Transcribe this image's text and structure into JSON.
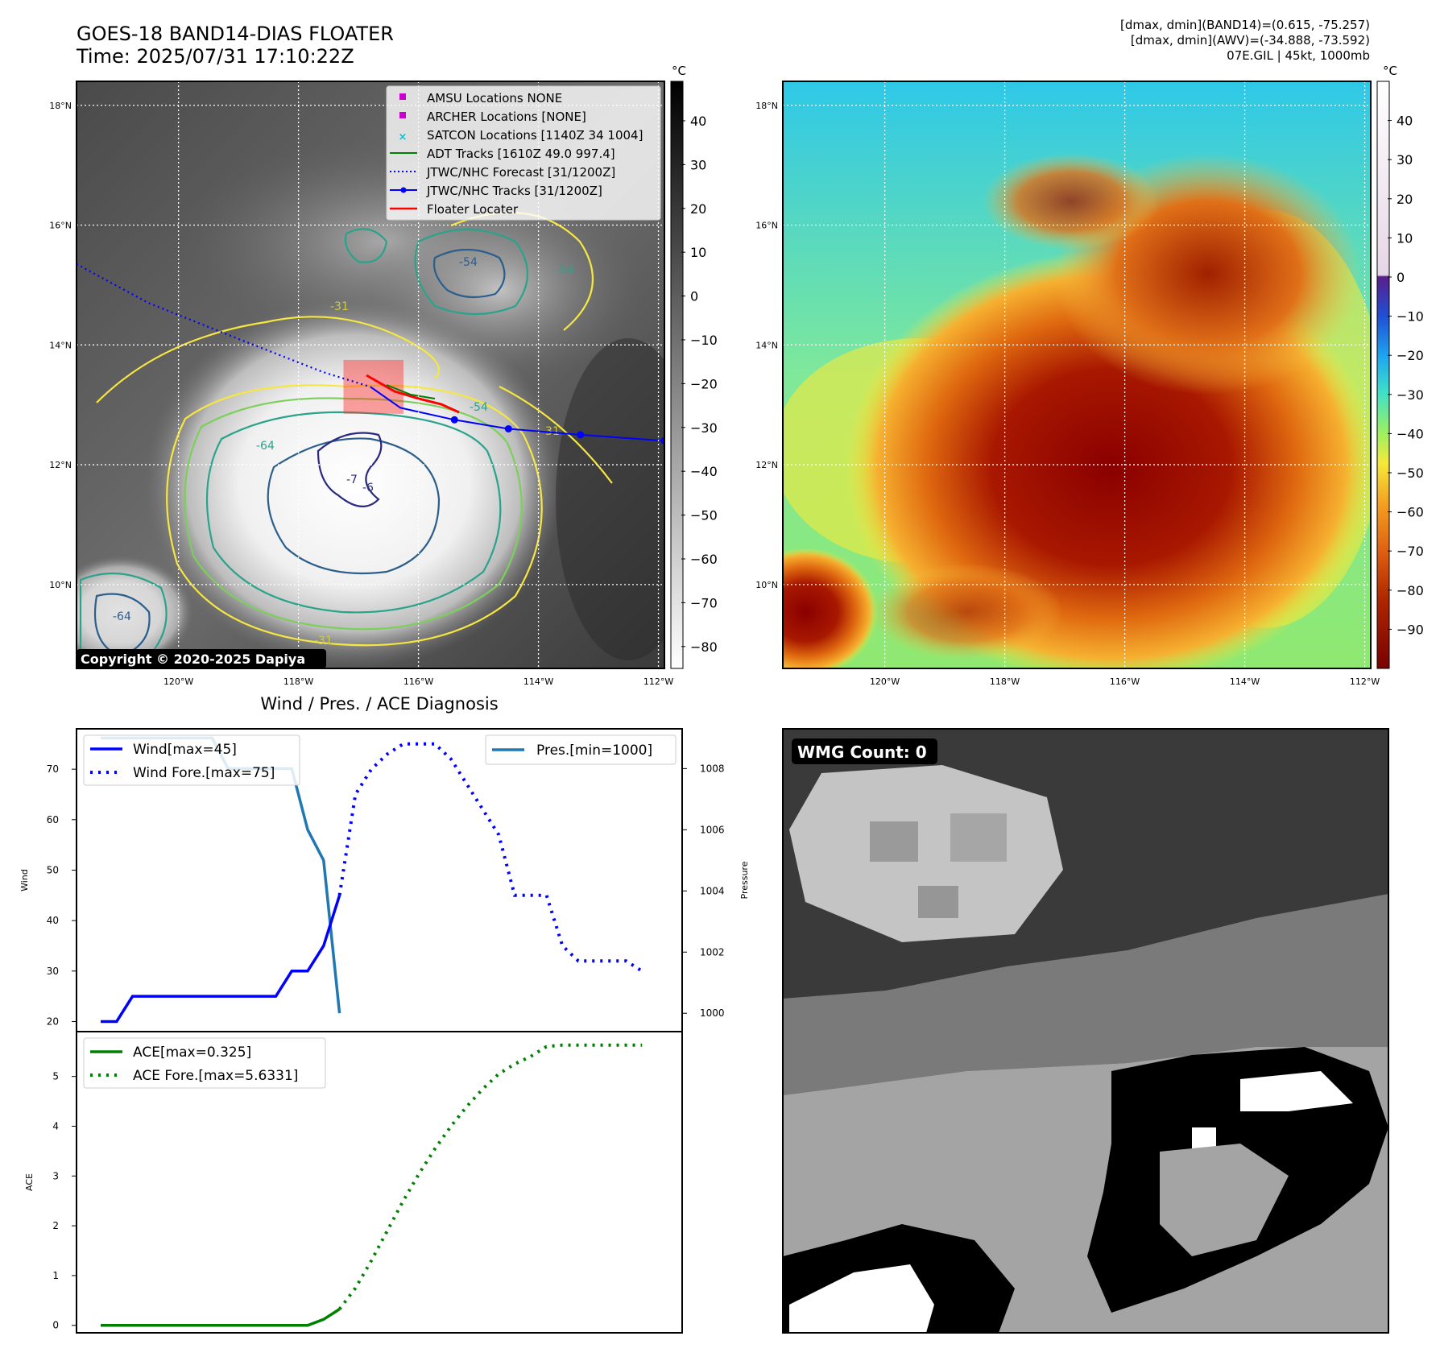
{
  "header": {
    "title_line1": "GOES-18 BAND14-DIAS FLOATER",
    "title_line2": "Time: 2025/07/31 17:10:22Z",
    "info_line1": "[dmax, dmin](BAND14)=(0.615, -75.257)",
    "info_line2": "[dmax, dmin](AWV)=(-34.888, -73.592)",
    "info_line3": "07E.GIL | 45kt, 1000mb"
  },
  "map_ir": {
    "lat_ticks": [
      "18°N",
      "16°N",
      "14°N",
      "12°N",
      "10°N"
    ],
    "lon_ticks": [
      "120°W",
      "118°W",
      "116°W",
      "114°W",
      "112°W"
    ],
    "colorbar_unit": "°C",
    "colorbar_ticks": [
      "40",
      "30",
      "20",
      "10",
      "0",
      "−10",
      "−20",
      "−30",
      "−40",
      "−50",
      "−60",
      "−70",
      "−80"
    ],
    "colorbar_values": [
      40,
      30,
      20,
      10,
      0,
      -10,
      -20,
      -30,
      -40,
      -50,
      -60,
      -70,
      -80
    ],
    "colorbar_range": [
      -85,
      49
    ],
    "copyright": "Copyright © 2020-2025 Dapiya",
    "contour_labels": [
      "-54",
      "-54",
      "-31",
      "-64",
      "-7",
      "-54",
      "-31",
      "-64",
      "-31",
      "-6"
    ],
    "legend": [
      {
        "label": "AMSU Locations NONE",
        "marker": "square",
        "color": "#cc00cc"
      },
      {
        "label": "ARCHER Locations [NONE]",
        "marker": "square",
        "color": "#cc00cc"
      },
      {
        "label": "SATCON Locations [1140Z 34 1004]",
        "marker": "x",
        "color": "#17becf"
      },
      {
        "label": "ADT Tracks [1610Z 49.0 997.4]",
        "marker": "line",
        "color": "#008000"
      },
      {
        "label": "JTWC/NHC Forecast [31/1200Z]",
        "marker": "dotted",
        "color": "#0000ff"
      },
      {
        "label": "JTWC/NHC Tracks [31/1200Z]",
        "marker": "line-dot",
        "color": "#0000ff"
      },
      {
        "label": "Floater Locater",
        "marker": "line",
        "color": "#ff0000"
      }
    ],
    "forecast_track": [
      [
        -121.7,
        15.35
      ],
      [
        -120.5,
        14.7
      ],
      [
        -119.0,
        14.1
      ],
      [
        -117.6,
        13.55
      ],
      [
        -116.8,
        13.3
      ]
    ],
    "observed_track": [
      [
        -116.8,
        13.3
      ],
      [
        -116.3,
        12.95
      ],
      [
        -115.4,
        12.75
      ],
      [
        -114.5,
        12.6
      ],
      [
        -113.3,
        12.5
      ],
      [
        -111.9,
        12.4
      ]
    ],
    "floater_box": {
      "lon": [
        -117.25,
        -116.25
      ],
      "lat": [
        12.85,
        13.75
      ]
    }
  },
  "map_awv": {
    "lat_ticks": [
      "18°N",
      "16°N",
      "14°N",
      "12°N",
      "10°N"
    ],
    "lon_ticks": [
      "120°W",
      "118°W",
      "116°W",
      "114°W",
      "112°W"
    ],
    "colorbar_unit": "°C",
    "colorbar_ticks": [
      "40",
      "30",
      "20",
      "10",
      "0",
      "−10",
      "−20",
      "−30",
      "−40",
      "−50",
      "−60",
      "−70",
      "−80",
      "−90"
    ],
    "colorbar_values": [
      40,
      30,
      20,
      10,
      0,
      -10,
      -20,
      -30,
      -40,
      -50,
      -60,
      -70,
      -80,
      -90
    ],
    "colorbar_range": [
      -100,
      50
    ]
  },
  "diagnosis": {
    "title": "Wind / Pres. / ACE Diagnosis",
    "wind_ylabel": "Wind",
    "pressure_ylabel": "Pressure",
    "ace_ylabel": "ACE",
    "legend_wind": "Wind[max=45]",
    "legend_wind_fore": "Wind Fore.[max=75]",
    "legend_pres": "Pres.[min=1000]",
    "legend_ace": "ACE[max=0.325]",
    "legend_ace_fore": "ACE Fore.[max=5.6331]"
  },
  "wmg": {
    "label": "WMG Count: 0"
  },
  "chart_data": [
    {
      "type": "line",
      "title": "Wind / Pres. / ACE Diagnosis",
      "ylabel": "Wind",
      "y2label": "Pressure",
      "xlim": [
        0,
        35
      ],
      "ylim": [
        18,
        78
      ],
      "y2lim": [
        999.4,
        1009.3
      ],
      "yticks": [
        20,
        30,
        40,
        50,
        60,
        70
      ],
      "y2ticks": [
        1000,
        1002,
        1004,
        1006,
        1008
      ],
      "series": [
        {
          "name": "Wind[max=45]",
          "style": "solid",
          "color": "#0000ff",
          "axis": "left",
          "x": [
            0,
            1,
            2,
            3,
            4,
            5,
            6,
            7,
            8,
            9,
            10,
            11,
            12,
            13,
            14,
            15,
            16,
            17
          ],
          "values": [
            20,
            20,
            25,
            25,
            25,
            25,
            25,
            25,
            25,
            25,
            25,
            25,
            30,
            30,
            35,
            45,
            null,
            null
          ]
        },
        {
          "name": "Wind Fore.[max=75]",
          "style": "dotted",
          "color": "#0000ff",
          "axis": "left",
          "x": [
            15,
            16,
            17,
            18,
            19,
            20,
            21,
            22,
            23,
            24,
            25,
            26,
            27,
            28,
            29,
            30,
            31,
            32,
            33,
            34
          ],
          "values": [
            45,
            65,
            70,
            73,
            75,
            75,
            75,
            72,
            67,
            62,
            57,
            45,
            45,
            45,
            35,
            32,
            32,
            32,
            32,
            30
          ]
        },
        {
          "name": "Pres.[min=1000]",
          "style": "solid",
          "color": "#1f77b4",
          "axis": "right",
          "x": [
            0,
            1,
            2,
            3,
            4,
            5,
            6,
            7,
            8,
            9,
            10,
            11,
            12,
            13,
            14,
            15
          ],
          "values": [
            1009,
            1009,
            1009,
            1009,
            1009,
            1009,
            1009,
            1009,
            1008,
            1008,
            1008,
            1008,
            1008,
            1006,
            1005,
            1000
          ]
        }
      ]
    },
    {
      "type": "line",
      "ylabel": "ACE",
      "xlim": [
        0,
        35
      ],
      "ylim": [
        -0.15,
        5.9
      ],
      "yticks": [
        0,
        1,
        2,
        3,
        4,
        5
      ],
      "series": [
        {
          "name": "ACE[max=0.325]",
          "style": "solid",
          "color": "#008000",
          "x": [
            0,
            2,
            4,
            6,
            8,
            10,
            12,
            13,
            14,
            15
          ],
          "values": [
            0,
            0,
            0,
            0,
            0,
            0,
            0,
            0,
            0.12,
            0.325
          ]
        },
        {
          "name": "ACE Fore.[max=5.6331]",
          "style": "dotted",
          "color": "#008000",
          "x": [
            15,
            16,
            17,
            18,
            19,
            20,
            21,
            22,
            23,
            24,
            25,
            26,
            27,
            28,
            29,
            30,
            31,
            32,
            33,
            34
          ],
          "values": [
            0.325,
            0.75,
            1.3,
            1.9,
            2.5,
            3.05,
            3.55,
            4.0,
            4.4,
            4.75,
            5.05,
            5.25,
            5.4,
            5.6,
            5.63,
            5.63,
            5.63,
            5.63,
            5.63,
            5.63
          ]
        }
      ]
    }
  ]
}
